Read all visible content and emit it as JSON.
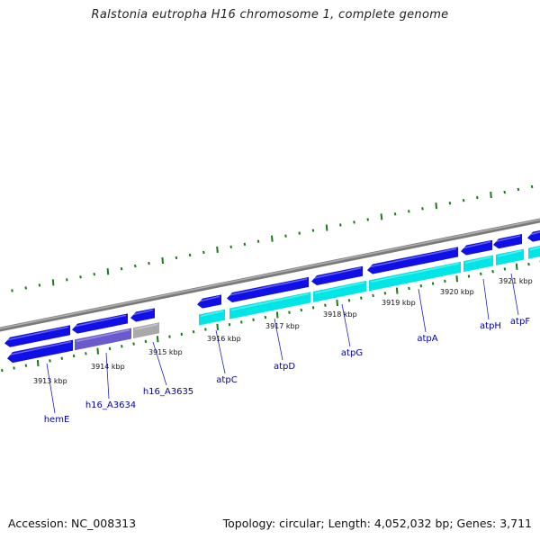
{
  "title": "Ralstonia eutropha H16 chromosome 1, complete genome",
  "footer": {
    "accession": "Accession: NC_008313",
    "stats": "Topology: circular; Length: 4,052,032 bp; Genes: 3,711"
  },
  "colors": {
    "backbone": "#888888",
    "gene_forward": "#1010e6",
    "gene_forward_highlight": "#6060f0",
    "cds": "#00e5e5",
    "cds_highlight": "#bffafa",
    "gene_purple": "#6a5acd",
    "gene_grey": "#a9a9a9",
    "tick": "#1a7a1a",
    "label": "#0000aa"
  },
  "axis": {
    "unit": "kbp",
    "ticks": [
      {
        "value": 3913,
        "label": "3913 kbp"
      },
      {
        "value": 3914,
        "label": "3914 kbp"
      },
      {
        "value": 3915,
        "label": "3915 kbp"
      },
      {
        "value": 3916,
        "label": "3916 kbp"
      },
      {
        "value": 3917,
        "label": "3917 kbp"
      },
      {
        "value": 3918,
        "label": "3918 kbp"
      },
      {
        "value": 3919,
        "label": "3919 kbp"
      },
      {
        "value": 3920,
        "label": "3920 kbp"
      },
      {
        "value": 3921,
        "label": "3921 kbp"
      }
    ]
  },
  "genes": [
    {
      "name": "hemE",
      "labeled": true
    },
    {
      "name": "h16_A3634",
      "labeled": true
    },
    {
      "name": "h16_A3635",
      "labeled": true
    },
    {
      "name": "atpC",
      "labeled": true
    },
    {
      "name": "atpD",
      "labeled": true
    },
    {
      "name": "atpG",
      "labeled": true
    },
    {
      "name": "atpA",
      "labeled": true
    },
    {
      "name": "atpH",
      "labeled": true
    },
    {
      "name": "atpF",
      "labeled": true
    }
  ]
}
